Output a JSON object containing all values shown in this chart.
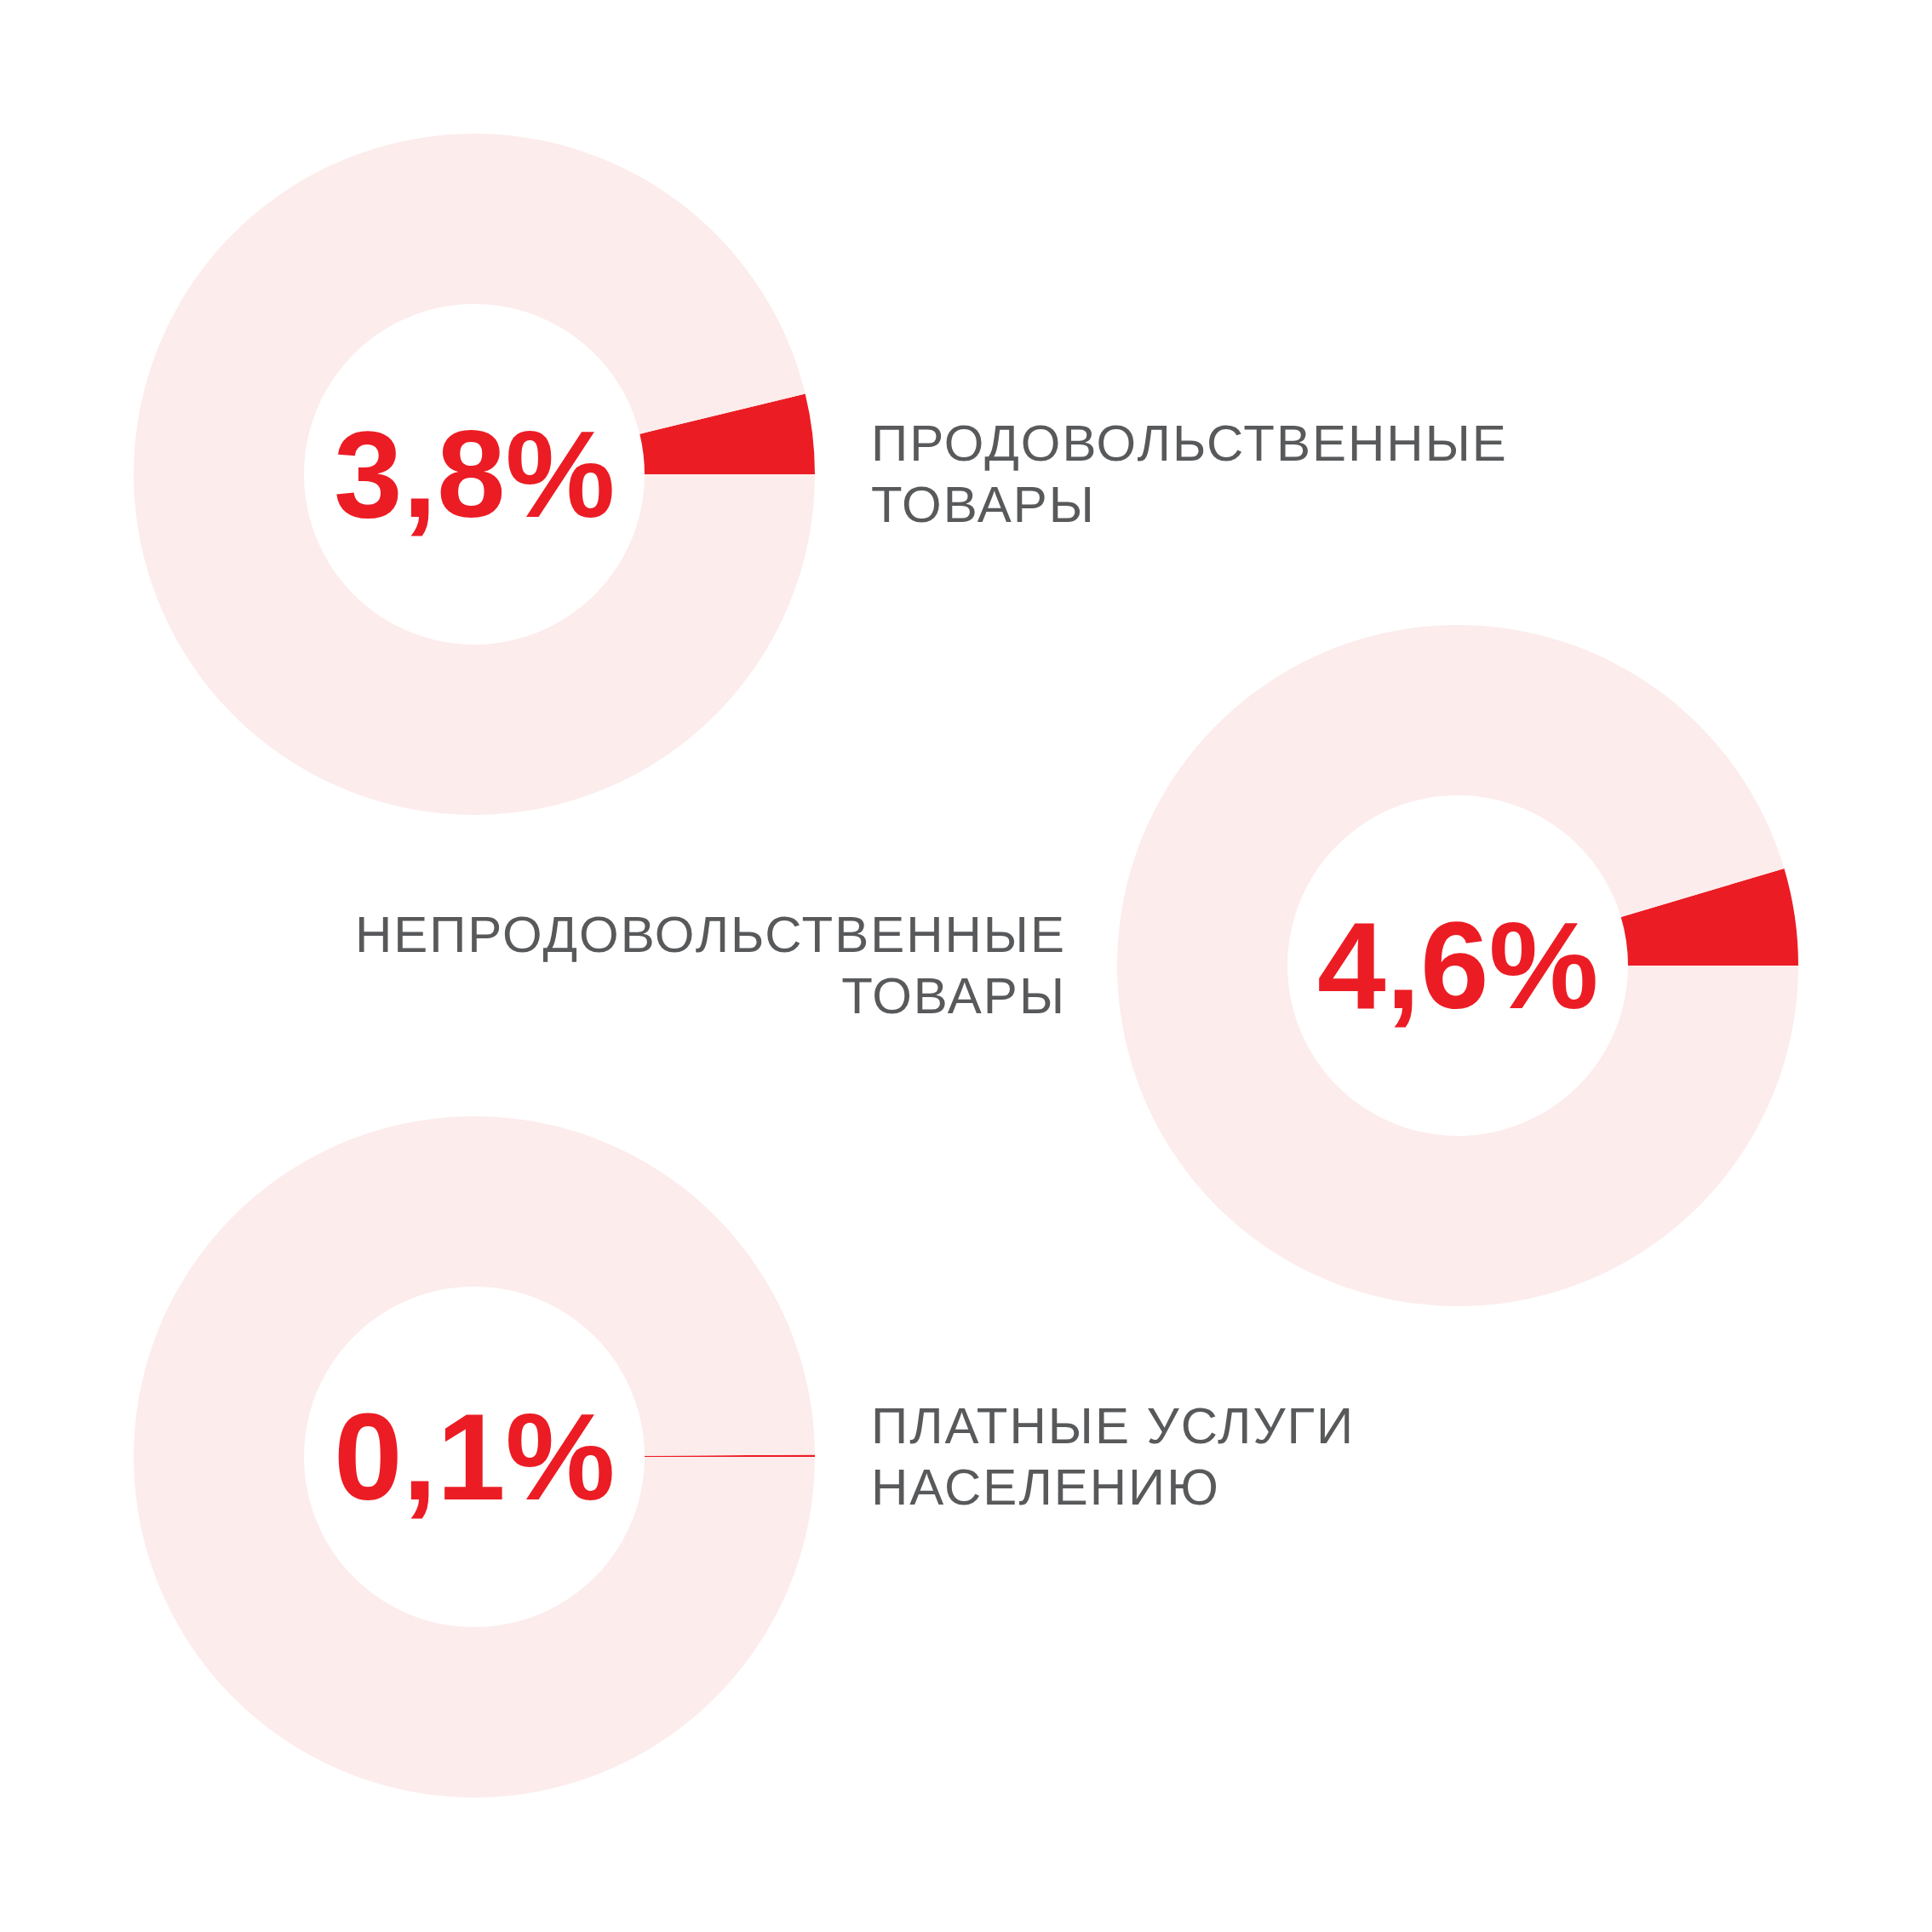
{
  "chart_data": [
    {
      "type": "donut",
      "title": "ПРОДОВОЛЬСТВЕННЫЕ ТОВАРЫ",
      "categories": [
        null,
        null
      ],
      "values": [
        3.8,
        96.2
      ],
      "colors": [
        "#ec1c24",
        "#fdecec"
      ],
      "annotations": [
        "3,8%"
      ]
    },
    {
      "type": "donut",
      "title": "НЕПРОДОВОЛЬСТВЕННЫЕ ТОВАРЫ",
      "categories": [
        null,
        null
      ],
      "values": [
        4.6,
        95.4
      ],
      "colors": [
        "#ec1c24",
        "#fdecec"
      ],
      "annotations": [
        "4,6%"
      ]
    },
    {
      "type": "donut",
      "title": "ПЛАТНЫЕ УСЛУГИ НАСЕЛЕНИЮ",
      "categories": [
        null,
        null
      ],
      "values": [
        0.1,
        99.9
      ],
      "colors": [
        "#ec1c24",
        "#fdecec"
      ],
      "annotations": [
        "0,1%"
      ]
    }
  ]
}
